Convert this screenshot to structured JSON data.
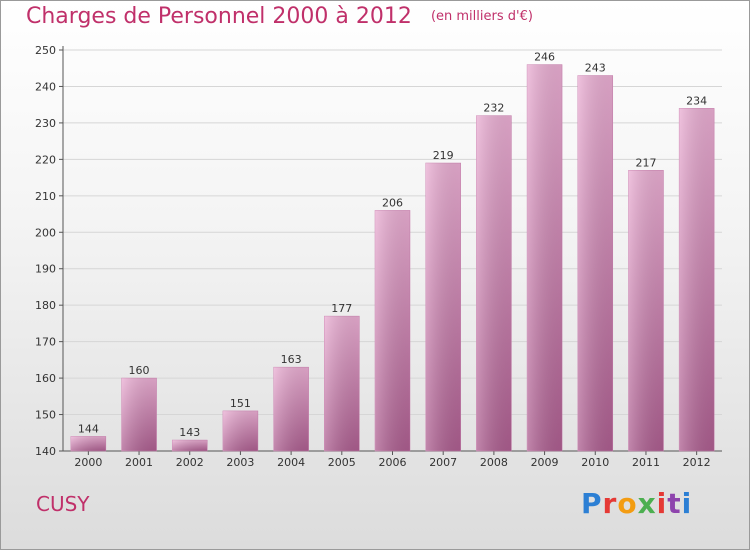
{
  "header": {
    "title": "Charges de Personnel 2000 à 2012",
    "subtitle": "(en milliers d'€)"
  },
  "footer": {
    "place_name": "CUSY"
  },
  "logo": {
    "letters": [
      "P",
      "r",
      "o",
      "x",
      "i",
      "t",
      "i"
    ],
    "colors": [
      "#2c7fd4",
      "#e53935",
      "#f39c12",
      "#4caf50",
      "#e53935",
      "#8e44ad",
      "#2c7fd4"
    ]
  },
  "colors": {
    "bar_light": "#e9a9d0",
    "bar_dark": "#a8568a",
    "text": "#333333",
    "accent": "#c0306a"
  },
  "chart_data": {
    "type": "bar",
    "categories": [
      "2000",
      "2001",
      "2002",
      "2003",
      "2004",
      "2005",
      "2006",
      "2007",
      "2008",
      "2009",
      "2010",
      "2011",
      "2012"
    ],
    "values": [
      144,
      160,
      143,
      151,
      163,
      177,
      206,
      219,
      232,
      246,
      243,
      217,
      234
    ],
    "data_labels": [
      "144",
      "160",
      "143",
      "151",
      "163",
      "177",
      "206",
      "219",
      "232",
      "246",
      "243",
      "217",
      "234"
    ],
    "ylim": [
      140,
      250
    ],
    "yticks": [
      140,
      150,
      160,
      170,
      180,
      190,
      200,
      210,
      220,
      230,
      240,
      250
    ],
    "grid": true,
    "title": "Charges de Personnel 2000 à 2012",
    "xlabel": "",
    "ylabel": ""
  }
}
